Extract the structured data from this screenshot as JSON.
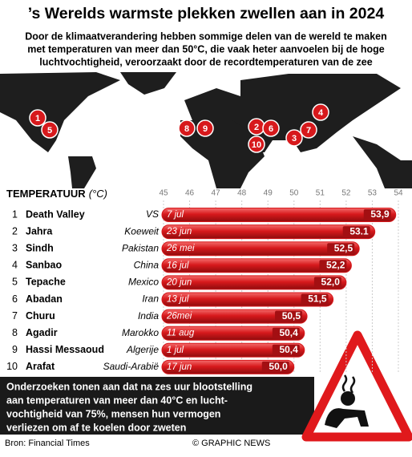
{
  "header": {
    "title": "’s Werelds warmste plekken zwellen aan in 2024",
    "subtitle": [
      "Door de klimaatverandering hebben sommige delen van de wereld te maken",
      "met temperaturen van meer dan 50°C, die vaak heter aanvoelen bij de hoge",
      "luchtvochtigheid, veroorzaakt door de recordtemperaturen van de zee"
    ]
  },
  "chart_data": {
    "type": "bar",
    "orientation": "horizontal",
    "title": "TEMPERATUUR",
    "unit": "(°C)",
    "ranks": [
      "1",
      "2",
      "3",
      "4",
      "5",
      "6",
      "7",
      "8",
      "9",
      "10"
    ],
    "categories": [
      "Death Valley",
      "Jahra",
      "Sindh",
      "Sanbao",
      "Tepache",
      "Abadan",
      "Churu",
      "Agadir",
      "Hassi Messaoud",
      "Arafat"
    ],
    "countries": [
      "VS",
      "Koeweit",
      "Pakistan",
      "China",
      "Mexico",
      "Iran",
      "India",
      "Marokko",
      "Algerije",
      "Saudi-Arabië"
    ],
    "dates": [
      "7 jul",
      "23 jun",
      "26 mei",
      "16 jul",
      "20 jun",
      "13 jul",
      "26mei",
      "11 aug",
      "1 jul",
      "17 jun"
    ],
    "values": [
      53.9,
      53.1,
      52.5,
      52.2,
      52.0,
      51.5,
      50.5,
      50.4,
      50.4,
      50.0
    ],
    "value_labels": [
      "53,9",
      "53.1",
      "52,5",
      "52,2",
      "52,0",
      "51,5",
      "50,5",
      "50,4",
      "50,4",
      "50,0"
    ],
    "xlim": [
      45,
      54
    ],
    "xticks": [
      45,
      46,
      47,
      48,
      49,
      50,
      51,
      52,
      53,
      54
    ],
    "color": "#d7191c"
  },
  "footer": {
    "note": [
      "Onderzoeken tonen aan dat na zes uur blootstelling",
      "aan temperaturen van meer dan 40°C en lucht-",
      "vochtigheid van 75%, mensen hun vermogen",
      "verliezen om af te koelen door zweten"
    ],
    "source": "Bron: Financial Times",
    "credit": "© GRAPHIC NEWS"
  }
}
